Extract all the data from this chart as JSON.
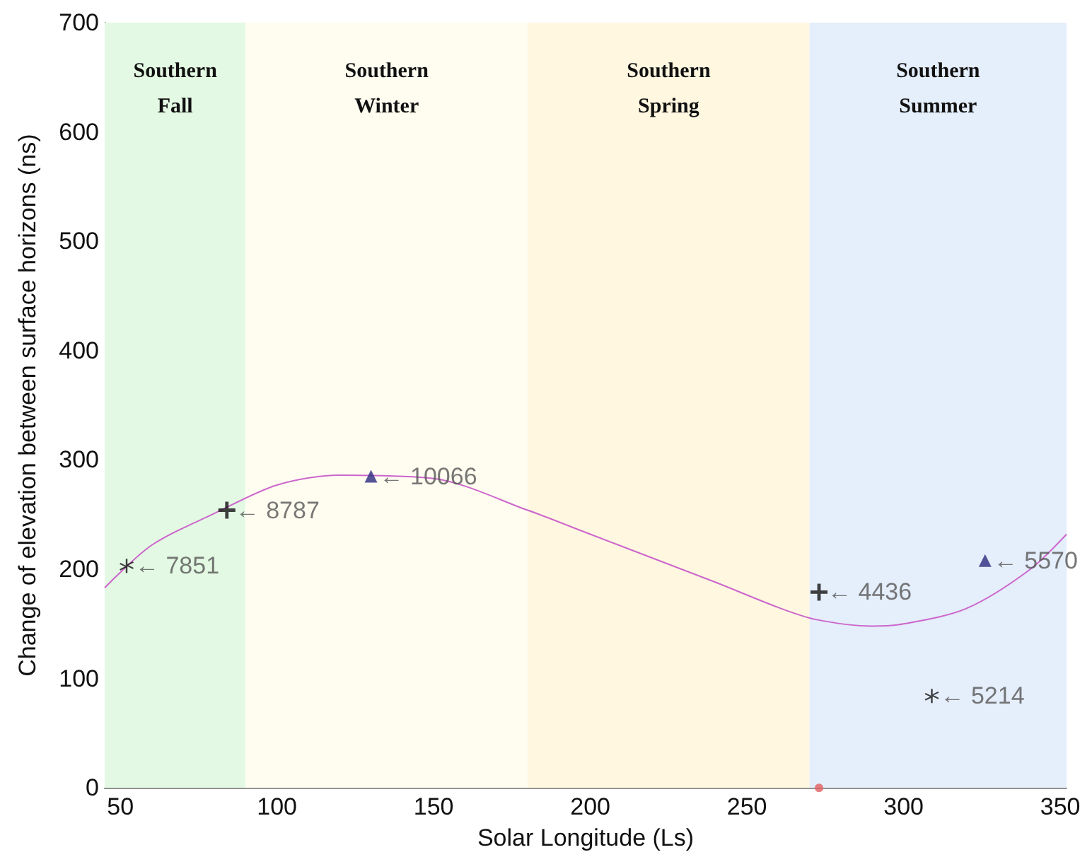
{
  "chart_data": {
    "type": "scatter",
    "xlabel": "Solar Longitude (Ls)",
    "ylabel": "Change of elevation between surface horizons (ns)",
    "xlim": [
      45,
      352
    ],
    "xticks": [
      50,
      100,
      150,
      200,
      250,
      300,
      350
    ],
    "ylim": [
      0,
      700
    ],
    "yticks": [
      0,
      100,
      200,
      300,
      400,
      500,
      600,
      700
    ],
    "grid": false,
    "bands": [
      {
        "axis": "x",
        "from": 45,
        "to": 90,
        "label": "Southern\nFall",
        "color": "#e4f9e4"
      },
      {
        "axis": "x",
        "from": 90,
        "to": 180,
        "label": "Southern\nWinter",
        "color": "#fffdf0"
      },
      {
        "axis": "x",
        "from": 180,
        "to": 270,
        "label": "Southern\nSpring",
        "color": "#fff7e0"
      },
      {
        "axis": "x",
        "from": 270,
        "to": 352,
        "label": "Southern\nSummer",
        "color": "#e5eefb"
      }
    ],
    "series": [
      {
        "type": "line",
        "color": "#cc66cc",
        "x": [
          45,
          60,
          80,
          100,
          120,
          150,
          180,
          200,
          220,
          240,
          260,
          272,
          290,
          300,
          320,
          340,
          352
        ],
        "values": [
          183,
          222,
          251,
          277,
          286,
          283,
          254,
          232,
          210,
          188,
          165,
          154,
          148,
          150,
          164,
          199,
          232
        ]
      },
      {
        "marker": "star",
        "color": "#111111",
        "x": [
          52,
          309
        ],
        "values": [
          203,
          84
        ]
      },
      {
        "marker": "cross",
        "color": "#111111",
        "x": [
          84,
          273
        ],
        "values": [
          254,
          179
        ]
      },
      {
        "marker": "triangle",
        "color": "#2a2a80",
        "x": [
          130,
          326
        ],
        "values": [
          285,
          208
        ]
      },
      {
        "marker": "circle",
        "color": "#e06060",
        "x": [
          273
        ],
        "values": [
          0
        ]
      }
    ],
    "annotations": [
      {
        "text": "← 7851",
        "x": 52,
        "y": 203
      },
      {
        "text": "← 8787",
        "x": 84,
        "y": 254
      },
      {
        "text": "← 10066",
        "x": 130,
        "y": 285
      },
      {
        "text": "← 4436",
        "x": 273,
        "y": 179
      },
      {
        "text": "← 5570",
        "x": 326,
        "y": 208
      },
      {
        "text": "← 5214",
        "x": 309,
        "y": 84
      }
    ]
  }
}
